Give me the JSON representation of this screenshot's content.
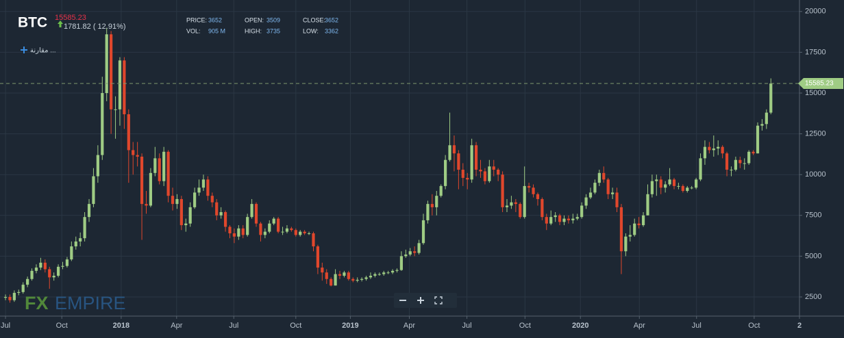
{
  "header": {
    "fields": [
      {
        "label": "PRICE:",
        "value": "3652"
      },
      {
        "label": "OPEN:",
        "value": "3509"
      },
      {
        "label": "CLOSE:",
        "value": "3652"
      },
      {
        "label": "VOL:",
        "value": "905 M"
      },
      {
        "label": "HIGH:",
        "value": "3735"
      },
      {
        "label": "LOW:",
        "value": "3362"
      }
    ],
    "compare": "مقارنة ...",
    "watermark_a": "FX",
    "watermark_b": "EMPIRE"
  },
  "chart_data": {
    "type": "candlestick",
    "title": "BTC",
    "change": "1781.82 ( 12.91%)",
    "last_price": 15585.23,
    "up_color": "#9fcc84",
    "down_color": "#e0472c",
    "grid": true,
    "ylim": [
      1325,
      20285
    ],
    "yticks": [
      2500,
      5000,
      7500,
      10000,
      12500,
      15000,
      17500,
      20000
    ],
    "xlim": [
      -1.25,
      180.5
    ],
    "xticks": [
      {
        "value": 0,
        "label": "Jul"
      },
      {
        "value": 12.8,
        "label": "Oct"
      },
      {
        "value": 26.3,
        "label": "2018"
      },
      {
        "value": 38.9,
        "label": "Apr"
      },
      {
        "value": 51.9,
        "label": "Jul"
      },
      {
        "value": 66,
        "label": "Oct"
      },
      {
        "value": 78.4,
        "label": "2019"
      },
      {
        "value": 91.8,
        "label": "Apr"
      },
      {
        "value": 104.9,
        "label": "Jul"
      },
      {
        "value": 118.1,
        "label": "Oct"
      },
      {
        "value": 130.7,
        "label": "2020"
      },
      {
        "value": 144.1,
        "label": "Apr"
      },
      {
        "value": 157.1,
        "label": "Jul"
      },
      {
        "value": 170.2,
        "label": "Oct"
      },
      {
        "value": 180.5,
        "label": "2"
      }
    ],
    "x": [
      0,
      1,
      2,
      3,
      4,
      5,
      6,
      7,
      8,
      9,
      10,
      11,
      12,
      13,
      14,
      15,
      16,
      17,
      18,
      19,
      20,
      21,
      22,
      23,
      24,
      25,
      26,
      27,
      28,
      29,
      30,
      31,
      32,
      33,
      34,
      35,
      36,
      37,
      38,
      39,
      40,
      41,
      42,
      43,
      44,
      45,
      46,
      47,
      48,
      49,
      50,
      51,
      52,
      53,
      54,
      55,
      56,
      57,
      58,
      59,
      60,
      61,
      62,
      63,
      64,
      65,
      66,
      67,
      68,
      69,
      70,
      71,
      72,
      73,
      74,
      75,
      76,
      77,
      78,
      79,
      80,
      81,
      82,
      83,
      84,
      85,
      86,
      87,
      88,
      89,
      90,
      91,
      92,
      93,
      94,
      95,
      96,
      97,
      98,
      99,
      100,
      101,
      102,
      103,
      104,
      105,
      106,
      107,
      108,
      109,
      110,
      111,
      112,
      113,
      114,
      115,
      116,
      117,
      118,
      119,
      120,
      121,
      122,
      123,
      124,
      125,
      126,
      127,
      128,
      129,
      130,
      131,
      132,
      133,
      134,
      135,
      136,
      137,
      138,
      139,
      140,
      141,
      142,
      143,
      144,
      145,
      146,
      147,
      148,
      149,
      150,
      151,
      152,
      153,
      154,
      155,
      156,
      157,
      158,
      159,
      160,
      161,
      162,
      163,
      164,
      165,
      166,
      167,
      168,
      169,
      170,
      171,
      172,
      173,
      174
    ],
    "open": [
      2450,
      2500,
      2300,
      2750,
      2800,
      3250,
      3600,
      4100,
      4300,
      4600,
      4200,
      3700,
      3800,
      4350,
      4400,
      4800,
      5600,
      5900,
      6100,
      7400,
      8200,
      9900,
      11200,
      15000,
      18600,
      14000,
      14000,
      17000,
      13700,
      11500,
      11200,
      11100,
      8200,
      8100,
      10100,
      11000,
      9600,
      11400,
      8700,
      8200,
      8500,
      6900,
      7000,
      8000,
      8900,
      9200,
      9700,
      8700,
      8300,
      7500,
      7700,
      6800,
      6400,
      6200,
      6700,
      6300,
      7400,
      8200,
      7000,
      6300,
      6500,
      7000,
      7300,
      6500,
      6500,
      6700,
      6600,
      6300,
      6500,
      6400,
      6400,
      5600,
      4300,
      4000,
      3600,
      3200,
      3900,
      3800,
      4000,
      3600,
      3500,
      3550,
      3600,
      3700,
      3800,
      3900,
      3900,
      4000,
      4000,
      4100,
      4150,
      5000,
      5100,
      5300,
      5200,
      5800,
      7200,
      8200,
      8000,
      8700,
      9300,
      10900,
      11800,
      11300,
      10300,
      9800,
      9700,
      11800,
      10300,
      10200,
      9600,
      10500,
      10300,
      10000,
      8000,
      8100,
      8300,
      8200,
      7400,
      9300,
      9200,
      8800,
      8500,
      7400,
      7000,
      7400,
      7500,
      7100,
      7300,
      7200,
      7300,
      7400,
      8100,
      8600,
      8900,
      9500,
      10100,
      9700,
      8800,
      8900,
      8000,
      5300,
      6200,
      6300,
      7000,
      6900,
      7500,
      8800,
      9600,
      9700,
      9200,
      9400,
      9700,
      9300,
      9300,
      9000,
      9200,
      9200,
      9700,
      11000,
      11700,
      11500,
      11600,
      11700,
      11300,
      10300,
      10300,
      10900,
      10700,
      10700,
      11400,
      11300,
      13000,
      13100,
      13800
    ],
    "high": [
      2650,
      2650,
      2900,
      2950,
      3400,
      3750,
      4250,
      4500,
      4900,
      4800,
      4350,
      4000,
      4500,
      4650,
      4950,
      5900,
      6200,
      6450,
      7700,
      8500,
      10400,
      11800,
      16000,
      19000,
      18800,
      14800,
      17200,
      17200,
      14000,
      12000,
      12000,
      11300,
      9000,
      10400,
      11700,
      11300,
      11700,
      11500,
      9200,
      8800,
      8700,
      7300,
      8300,
      9200,
      9700,
      10000,
      9900,
      8900,
      8500,
      8000,
      7800,
      6900,
      6700,
      6900,
      6900,
      7600,
      8500,
      8300,
      7100,
      6700,
      7200,
      7400,
      7400,
      6800,
      6900,
      6800,
      6700,
      6600,
      6600,
      6500,
      6500,
      5700,
      4600,
      4200,
      3700,
      4200,
      4100,
      4100,
      4100,
      3700,
      3700,
      3700,
      3800,
      4000,
      4000,
      4000,
      4100,
      4100,
      4200,
      4250,
      5300,
      5400,
      5500,
      5600,
      6000,
      7600,
      8400,
      8800,
      9000,
      9400,
      11200,
      13800,
      12400,
      11500,
      10700,
      10100,
      12200,
      12000,
      10900,
      10400,
      10900,
      10900,
      10400,
      10200,
      8500,
      8700,
      8500,
      8300,
      10500,
      9500,
      9400,
      8900,
      8600,
      7600,
      7800,
      7700,
      7600,
      7500,
      7500,
      7600,
      7600,
      8300,
      8800,
      9200,
      9700,
      10300,
      10500,
      9800,
      9200,
      9200,
      8200,
      6400,
      6900,
      7300,
      7400,
      7700,
      9400,
      10000,
      10000,
      9900,
      9600,
      10400,
      9800,
      9500,
      9400,
      9300,
      9300,
      9800,
      11300,
      12100,
      12000,
      12400,
      12100,
      11800,
      11400,
      10500,
      11100,
      11100,
      11000,
      11500,
      11500,
      13200,
      13400,
      14000,
      15900
    ],
    "low": [
      2300,
      2150,
      2200,
      2600,
      2700,
      3100,
      3500,
      3950,
      4150,
      4000,
      3000,
      3500,
      3700,
      4200,
      4300,
      4700,
      5400,
      5600,
      5900,
      7100,
      8000,
      9500,
      10900,
      14500,
      12500,
      12200,
      13000,
      12800,
      9500,
      10000,
      10500,
      6000,
      7600,
      8000,
      9900,
      9400,
      9300,
      8300,
      7800,
      7900,
      6600,
      6500,
      6800,
      7900,
      8700,
      9000,
      8400,
      8000,
      7200,
      7300,
      6500,
      6100,
      5800,
      6000,
      6100,
      6200,
      7300,
      6800,
      5900,
      6100,
      6400,
      6900,
      6400,
      6300,
      6400,
      6500,
      6200,
      6200,
      6300,
      6300,
      5300,
      3900,
      3500,
      3300,
      3150,
      3200,
      3600,
      3700,
      3500,
      3400,
      3400,
      3450,
      3500,
      3600,
      3700,
      3800,
      3800,
      3900,
      3900,
      4000,
      4100,
      4900,
      5000,
      5000,
      5100,
      5700,
      7000,
      7500,
      7500,
      8600,
      9100,
      10800,
      10200,
      9100,
      9300,
      9100,
      9500,
      9900,
      9800,
      9400,
      9500,
      9900,
      9600,
      7700,
      7700,
      7900,
      7700,
      7300,
      7300,
      8900,
      8600,
      8100,
      7200,
      6600,
      6900,
      7100,
      6900,
      6900,
      7000,
      7000,
      7200,
      7300,
      7900,
      8500,
      8800,
      9300,
      9500,
      8500,
      8500,
      7700,
      3900,
      5000,
      5900,
      6200,
      6700,
      6800,
      7500,
      8600,
      8700,
      8800,
      8900,
      9300,
      9100,
      9100,
      8900,
      8900,
      9100,
      9100,
      9600,
      10600,
      11300,
      11100,
      11200,
      11000,
      9900,
      9900,
      10200,
      10400,
      10300,
      10600,
      11200,
      11300,
      12700,
      12800,
      13700
    ],
    "close": [
      2500,
      2300,
      2750,
      2800,
      3250,
      3600,
      4100,
      4300,
      4600,
      4200,
      3700,
      3800,
      4350,
      4400,
      4800,
      5600,
      5900,
      6100,
      7400,
      8200,
      9900,
      11200,
      15000,
      18600,
      14000,
      14000,
      17000,
      13700,
      11500,
      11200,
      11100,
      8200,
      8100,
      10100,
      11000,
      9600,
      11400,
      8700,
      8200,
      8500,
      6900,
      7000,
      8000,
      8900,
      9200,
      9700,
      8700,
      8300,
      7500,
      7700,
      6800,
      6400,
      6200,
      6700,
      6300,
      7400,
      8200,
      7000,
      6300,
      6500,
      7000,
      7300,
      6500,
      6500,
      6700,
      6600,
      6300,
      6500,
      6400,
      6400,
      5600,
      4300,
      4000,
      3600,
      3200,
      3900,
      3800,
      4000,
      3600,
      3500,
      3550,
      3600,
      3700,
      3800,
      3900,
      3900,
      4000,
      4000,
      4100,
      4150,
      5000,
      5100,
      5300,
      5200,
      5800,
      7200,
      8200,
      8000,
      8700,
      9300,
      10900,
      11800,
      11300,
      10300,
      9800,
      9700,
      11800,
      10300,
      10200,
      9600,
      10500,
      10300,
      10000,
      8000,
      8100,
      8300,
      8200,
      7400,
      9300,
      9200,
      8800,
      8500,
      7400,
      7000,
      7400,
      7500,
      7100,
      7300,
      7200,
      7300,
      7400,
      8100,
      8600,
      8900,
      9500,
      10100,
      9700,
      8800,
      8900,
      8000,
      5300,
      6200,
      6300,
      7000,
      6900,
      7500,
      8800,
      9600,
      9700,
      9200,
      9400,
      9700,
      9300,
      9300,
      9000,
      9200,
      9200,
      9700,
      11000,
      11700,
      11500,
      11600,
      11700,
      11300,
      10300,
      10300,
      10900,
      10700,
      10700,
      11400,
      11300,
      13000,
      13100,
      13800,
      15585
    ]
  }
}
